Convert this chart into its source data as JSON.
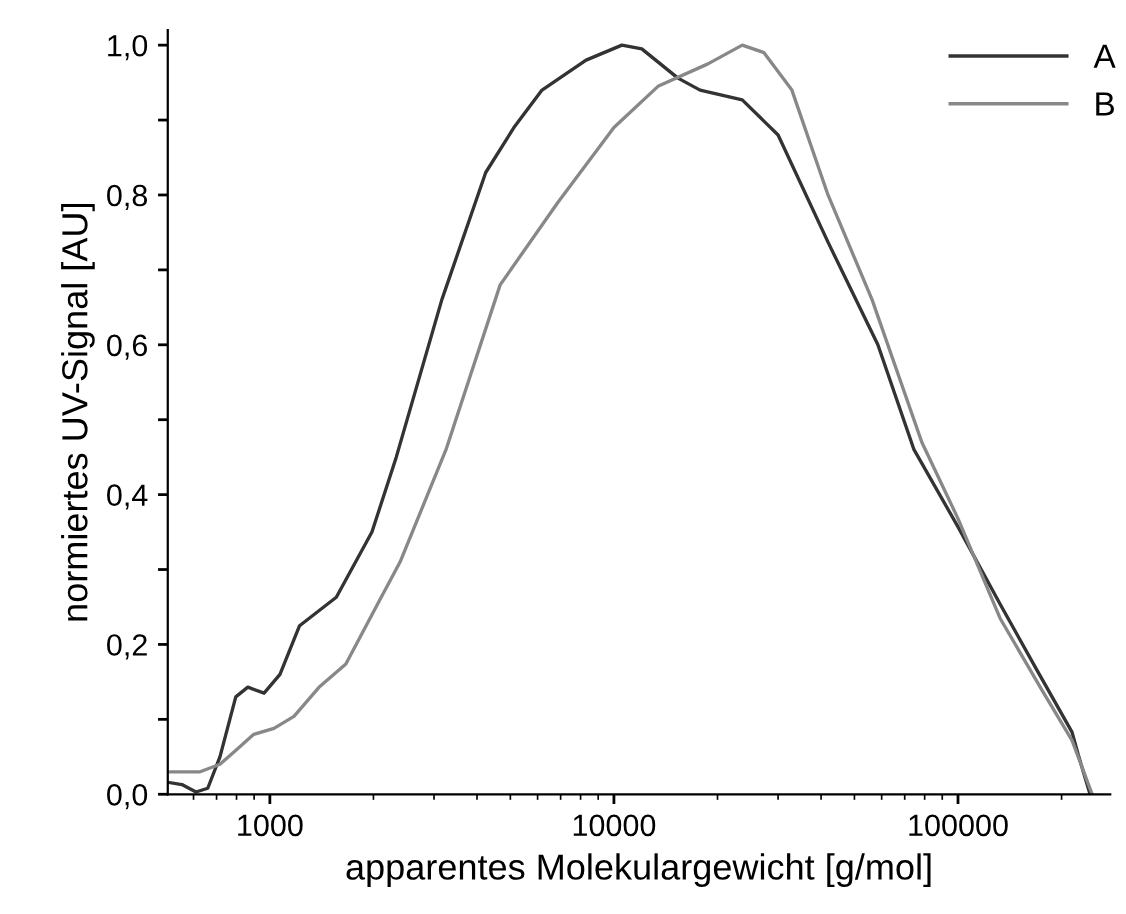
{
  "chart_data": {
    "type": "line",
    "xlabel": "apparentes Molekulargewicht [g/mol]",
    "ylabel": "normiertes UV-Signal [AU]",
    "log": "x",
    "xlim": [
      505,
      277000
    ],
    "xticks": [
      1000,
      10000,
      100000
    ],
    "ylim": [
      0,
      1.02
    ],
    "yticks": [
      {
        "value": 0,
        "label": "0,0"
      },
      {
        "value": 0.1,
        "label": null
      },
      {
        "value": 0.2,
        "label": "0,2"
      },
      {
        "value": 0.3,
        "label": null
      },
      {
        "value": 0.4,
        "label": "0,4"
      },
      {
        "value": 0.5,
        "label": null
      },
      {
        "value": 0.6,
        "label": "0,6"
      },
      {
        "value": 0.7,
        "label": null
      },
      {
        "value": 0.8,
        "label": "0,8"
      },
      {
        "value": 0.9,
        "label": null
      },
      {
        "value": 1.0,
        "label": "1,0"
      }
    ],
    "grid": false,
    "legend": "top right",
    "marker": "none",
    "line_style": "solid",
    "series": [
      {
        "name": "A",
        "color": "#333333",
        "x": [
          505,
          555,
          610,
          660,
          716,
          796,
          863,
          962,
          1070,
          1220,
          1560,
          1980,
          2330,
          3160,
          4240,
          5120,
          6180,
          8300,
          10550,
          12050,
          15350,
          17800,
          23600,
          30000,
          41900,
          58500,
          74500,
          100000,
          132500,
          168500,
          214500,
          223500,
          242000
        ],
        "values": [
          0.016,
          0.013,
          0.003,
          0.008,
          0.05,
          0.13,
          0.143,
          0.135,
          0.16,
          0.225,
          0.263,
          0.35,
          0.45,
          0.66,
          0.83,
          0.89,
          0.94,
          0.98,
          1.0,
          0.995,
          0.956,
          0.94,
          0.927,
          0.88,
          0.737,
          0.6,
          0.46,
          0.357,
          0.254,
          0.168,
          0.083,
          0.053,
          0
        ]
      },
      {
        "name": "B",
        "color": "#888888",
        "x": [
          512,
          627,
          716,
          785,
          898,
          1028,
          1175,
          1397,
          1663,
          2090,
          2390,
          3250,
          4670,
          6870,
          10000,
          13430,
          18760,
          23600,
          27300,
          32900,
          41900,
          56300,
          78500,
          100000,
          132500,
          175400,
          214500,
          245400
        ],
        "values": [
          0.03,
          0.03,
          0.04,
          0.056,
          0.08,
          0.088,
          0.104,
          0.144,
          0.174,
          0.26,
          0.31,
          0.46,
          0.68,
          0.79,
          0.89,
          0.945,
          0.975,
          1.0,
          0.99,
          0.94,
          0.8,
          0.66,
          0.47,
          0.368,
          0.235,
          0.139,
          0.072,
          0
        ]
      }
    ]
  }
}
